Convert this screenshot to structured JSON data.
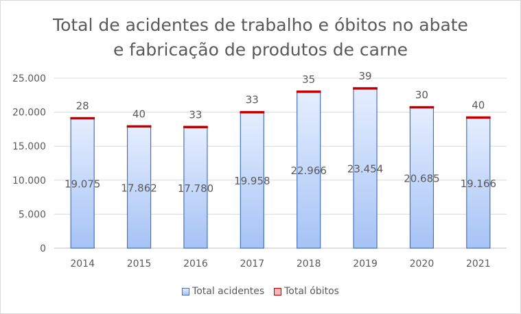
{
  "chart_data": {
    "type": "bar",
    "stacked": true,
    "title_lines": [
      "Total de acidentes de trabalho e óbitos no abate",
      "e fabricação de produtos de carne"
    ],
    "categories": [
      "2014",
      "2015",
      "2016",
      "2017",
      "2018",
      "2019",
      "2020",
      "2021"
    ],
    "series": [
      {
        "name": "Total acidentes",
        "values": [
          19075,
          17862,
          17780,
          19958,
          22966,
          23454,
          20685,
          19166
        ],
        "labels": [
          "19.075",
          "17.862",
          "17.780",
          "19.958",
          "22.966",
          "23.454",
          "20.685",
          "19.166"
        ],
        "color": "#4472c4"
      },
      {
        "name": "Total óbitos",
        "values": [
          28,
          40,
          33,
          33,
          35,
          39,
          30,
          40
        ],
        "labels": [
          "28",
          "40",
          "33",
          "33",
          "35",
          "39",
          "30",
          "40"
        ],
        "color": "#c00000"
      }
    ],
    "yticks": [
      "0",
      "5.000",
      "10.000",
      "15.000",
      "20.000",
      "25.000"
    ],
    "ytick_values": [
      0,
      5000,
      10000,
      15000,
      20000,
      25000
    ],
    "ylim": [
      0,
      25000
    ],
    "grid": true,
    "legend_position": "bottom"
  }
}
